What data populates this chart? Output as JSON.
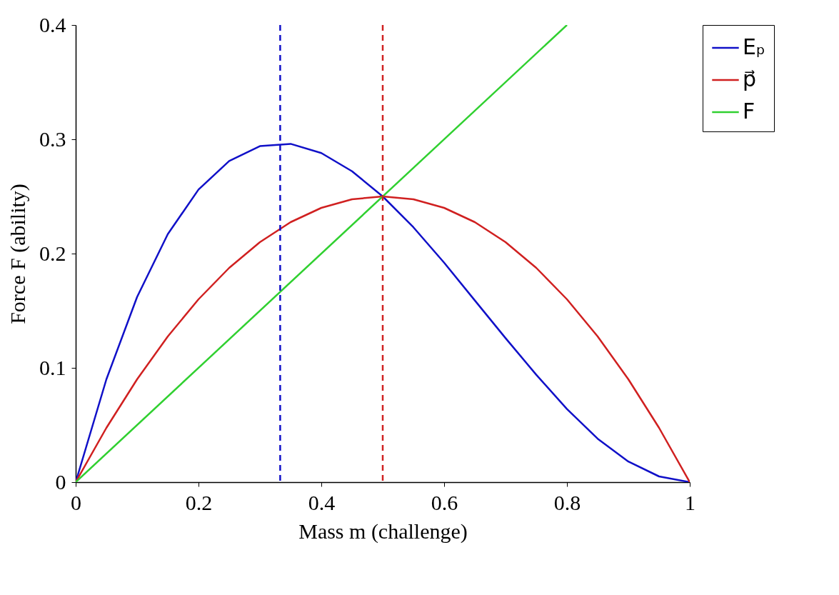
{
  "chart_data": {
    "type": "line",
    "xlabel": "Mass m (challenge)",
    "ylabel": "Force F (ability)",
    "x": [
      0,
      0.05,
      0.1,
      0.15,
      0.2,
      0.25,
      0.3,
      0.35,
      0.4,
      0.45,
      0.5,
      0.55,
      0.6,
      0.65,
      0.7,
      0.75,
      0.8,
      0.85,
      0.9,
      0.95,
      1
    ],
    "series": [
      {
        "name": "Eₚ",
        "color": "#1010c8",
        "values": [
          0,
          0.09,
          0.162,
          0.217,
          0.256,
          0.281,
          0.294,
          0.296,
          0.288,
          0.272,
          0.25,
          0.223,
          0.192,
          0.159,
          0.126,
          0.094,
          0.064,
          0.038,
          0.018,
          0.005,
          0
        ]
      },
      {
        "name": "p⃗",
        "color": "#d02020",
        "values": [
          0,
          0.0475,
          0.09,
          0.1275,
          0.16,
          0.1875,
          0.21,
          0.2275,
          0.24,
          0.2475,
          0.25,
          0.2475,
          0.24,
          0.2275,
          0.21,
          0.1875,
          0.16,
          0.1275,
          0.09,
          0.0475,
          0
        ]
      },
      {
        "name": "F",
        "color": "#30d030",
        "x": [
          0,
          0.8
        ],
        "values": [
          0,
          0.4
        ]
      }
    ],
    "xlim": [
      0,
      1
    ],
    "xticks": [
      0,
      0.2,
      0.4,
      0.6,
      0.8,
      1
    ],
    "ylim": [
      0,
      0.4
    ],
    "yticks": [
      0,
      0.1,
      0.2,
      0.3,
      0.4
    ],
    "ref_lines": [
      {
        "axis": "x",
        "value": 0.333,
        "color": "#1010c8",
        "line_style": "dashed"
      },
      {
        "axis": "x",
        "value": 0.5,
        "color": "#d02020",
        "line_style": "dashed"
      }
    ],
    "legend": "top right",
    "grid": false,
    "line_style": "solid"
  }
}
